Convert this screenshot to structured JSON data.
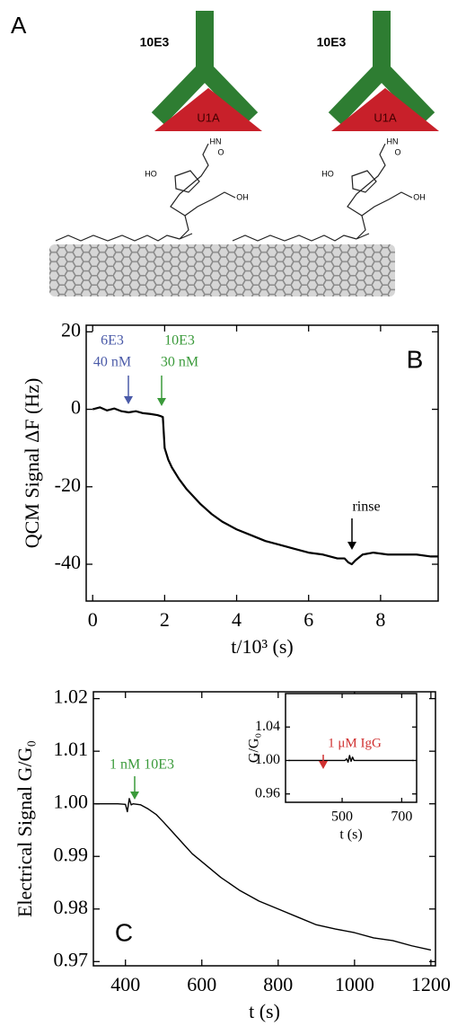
{
  "diagram": {
    "panel_label": "A",
    "antibodies": [
      {
        "label": "10E3",
        "protein": "U1A",
        "chem_labels": [
          "HN",
          "O",
          "HO",
          "OH"
        ]
      },
      {
        "label": "10E3",
        "protein": "U1A",
        "chem_labels": [
          "HN",
          "O",
          "HO",
          "OH"
        ]
      }
    ]
  },
  "chart_data": [
    {
      "type": "line",
      "panel_label": "B",
      "x_label": "t/10³ (s)",
      "y_label": "QCM Signal ΔF (Hz)",
      "x": [
        0,
        0.2,
        0.4,
        0.6,
        0.8,
        1.0,
        1.2,
        1.4,
        1.6,
        1.8,
        1.9,
        1.95,
        2.0,
        2.1,
        2.2,
        2.4,
        2.6,
        2.8,
        3.0,
        3.3,
        3.6,
        4.0,
        4.4,
        4.8,
        5.2,
        5.6,
        6.0,
        6.4,
        6.8,
        7.0,
        7.1,
        7.2,
        7.3,
        7.5,
        7.8,
        8.2,
        8.6,
        9.0,
        9.4,
        9.6
      ],
      "series": [
        {
          "color": "#000000",
          "values": [
            0,
            0.5,
            -0.3,
            0.2,
            -0.5,
            -0.8,
            -0.5,
            -1,
            -1.2,
            -1.5,
            -1.8,
            -2,
            -10,
            -13,
            -15,
            -18,
            -20.5,
            -22.5,
            -24.5,
            -27,
            -29,
            -31,
            -32.5,
            -34,
            -35,
            -36,
            -37,
            -37.5,
            -38.5,
            -38.5,
            -39.5,
            -40,
            -39,
            -37.5,
            -37,
            -37.5,
            -37.5,
            -37.5,
            -38,
            -38
          ]
        }
      ],
      "xlim": [
        -0.18,
        9.6
      ],
      "ylim": [
        -49.5,
        21.7
      ],
      "xticks": [
        0,
        2,
        4,
        6,
        8
      ],
      "yticks": [
        20,
        0,
        -20,
        -40
      ],
      "annotations": [
        {
          "lines": [
            "6E3",
            "40 nM"
          ],
          "color": "#4a5aa8"
        },
        {
          "lines": [
            "10E3",
            "30 nM"
          ],
          "color": "#3a9a3a"
        },
        {
          "lines": [
            "rinse"
          ],
          "color": "#000000"
        }
      ]
    },
    {
      "type": "line",
      "panel_label": "C",
      "x_label": "t (s)",
      "y_label": "Electrical Signal G/G₀",
      "x": [
        320,
        350,
        380,
        400,
        405,
        410,
        415,
        420,
        440,
        460,
        480,
        500,
        525,
        550,
        575,
        600,
        650,
        700,
        750,
        800,
        850,
        900,
        950,
        1000,
        1050,
        1100,
        1150,
        1200
      ],
      "series": [
        {
          "color": "#000000",
          "values": [
            1.0,
            1.0,
            1.0,
            0.9999,
            0.9985,
            1.001,
            0.9998,
            1.0,
            0.9998,
            0.999,
            0.998,
            0.9965,
            0.9945,
            0.9925,
            0.9905,
            0.989,
            0.986,
            0.9835,
            0.9815,
            0.98,
            0.9785,
            0.977,
            0.9762,
            0.9755,
            0.9745,
            0.974,
            0.973,
            0.9722
          ]
        }
      ],
      "xlim": [
        316,
        1212
      ],
      "ylim": [
        0.9692,
        1.0213
      ],
      "xticks": [
        400,
        600,
        800,
        1000,
        1200
      ],
      "yticks": [
        1.02,
        1.01,
        {
          "value": 1,
          "label": "1.00"
        },
        0.99,
        0.98,
        0.97
      ],
      "annotations": [
        {
          "lines": [
            "1 nM 10E3"
          ],
          "color": "#3a9a3a"
        }
      ]
    },
    {
      "type": "line",
      "x_label": "t (s)",
      "y_label": "G/G₀",
      "x": [
        320,
        400,
        480,
        510,
        515,
        520,
        525,
        530,
        535,
        540,
        550,
        600,
        700,
        740
      ],
      "series": [
        {
          "color": "#000000",
          "values": [
            1,
            1,
            1,
            1,
            1.002,
            0.998,
            1.006,
            0.999,
            1.004,
            1,
            1,
            1,
            1,
            1
          ]
        }
      ],
      "xlim": [
        310,
        750
      ],
      "ylim": [
        0.95,
        1.08
      ],
      "xticks": [
        500,
        700
      ],
      "yticks": [
        1.04,
        {
          "value": 1,
          "label": "1.00"
        },
        0.96
      ],
      "annotations": [
        {
          "lines": [
            "1 μM IgG"
          ],
          "color": "#d03030"
        }
      ]
    }
  ]
}
